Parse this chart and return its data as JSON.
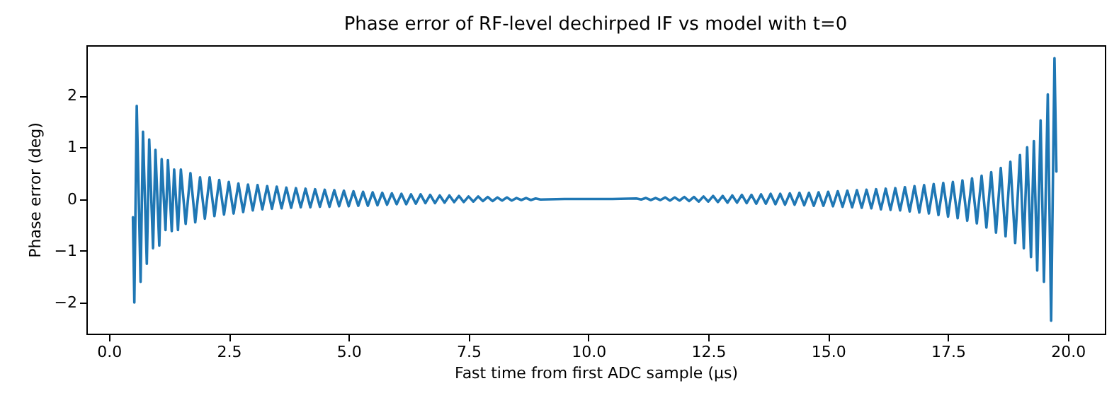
{
  "chart_data": {
    "type": "line",
    "title": "Phase error of RF-level dechirped IF vs model with t=0",
    "xlabel": "Fast time from first ADC sample (µs)",
    "ylabel": "Phase error (deg)",
    "x": [
      0.5,
      0.53,
      0.58,
      0.66,
      0.71,
      0.79,
      0.84,
      0.92,
      0.97,
      1.05,
      1.1,
      1.18,
      1.23,
      1.31,
      1.36,
      1.44,
      1.5,
      1.6,
      1.7,
      1.8,
      1.9,
      2.0,
      2.1,
      2.2,
      2.3,
      2.4,
      2.5,
      2.6,
      2.7,
      2.8,
      2.9,
      3.0,
      3.1,
      3.2,
      3.3,
      3.4,
      3.5,
      3.6,
      3.7,
      3.8,
      3.9,
      4.0,
      4.1,
      4.2,
      4.3,
      4.4,
      4.5,
      4.6,
      4.7,
      4.8,
      4.9,
      5.0,
      5.1,
      5.2,
      5.3,
      5.4,
      5.5,
      5.6,
      5.7,
      5.8,
      5.9,
      6.0,
      6.1,
      6.2,
      6.3,
      6.4,
      6.5,
      6.6,
      6.7,
      6.8,
      6.9,
      7.0,
      7.1,
      7.2,
      7.3,
      7.4,
      7.5,
      7.6,
      7.7,
      7.8,
      7.9,
      8.0,
      8.1,
      8.2,
      8.3,
      8.4,
      8.5,
      8.6,
      8.7,
      8.8,
      8.9,
      9.0,
      9.5,
      10.5,
      11.0,
      11.1,
      11.2,
      11.3,
      11.4,
      11.5,
      11.6,
      11.7,
      11.8,
      11.9,
      12.0,
      12.1,
      12.2,
      12.3,
      12.4,
      12.5,
      12.6,
      12.7,
      12.8,
      12.9,
      13.0,
      13.1,
      13.2,
      13.3,
      13.4,
      13.5,
      13.6,
      13.7,
      13.8,
      13.9,
      14.0,
      14.1,
      14.2,
      14.3,
      14.4,
      14.5,
      14.6,
      14.7,
      14.8,
      14.9,
      15.0,
      15.1,
      15.2,
      15.3,
      15.4,
      15.5,
      15.6,
      15.7,
      15.8,
      15.9,
      16.0,
      16.1,
      16.2,
      16.3,
      16.4,
      16.5,
      16.6,
      16.7,
      16.8,
      16.9,
      17.0,
      17.1,
      17.2,
      17.3,
      17.4,
      17.5,
      17.6,
      17.7,
      17.8,
      17.9,
      18.0,
      18.1,
      18.2,
      18.3,
      18.4,
      18.5,
      18.6,
      18.7,
      18.8,
      18.9,
      19.0,
      19.08,
      19.15,
      19.23,
      19.29,
      19.36,
      19.43,
      19.5,
      19.58,
      19.65,
      19.72,
      19.76
    ],
    "values": [
      -0.35,
      -2.0,
      1.8,
      -1.6,
      1.3,
      -1.25,
      1.15,
      -0.95,
      0.95,
      -0.9,
      0.77,
      -0.6,
      0.75,
      -0.62,
      0.57,
      -0.6,
      0.57,
      -0.48,
      0.5,
      -0.45,
      0.42,
      -0.38,
      0.42,
      -0.33,
      0.37,
      -0.3,
      0.33,
      -0.28,
      0.3,
      -0.25,
      0.28,
      -0.22,
      0.27,
      -0.2,
      0.25,
      -0.19,
      0.24,
      -0.18,
      0.22,
      -0.17,
      0.21,
      -0.16,
      0.2,
      -0.16,
      0.19,
      -0.15,
      0.18,
      -0.15,
      0.17,
      -0.14,
      0.16,
      -0.14,
      0.15,
      -0.13,
      0.14,
      -0.13,
      0.13,
      -0.12,
      0.12,
      -0.11,
      0.11,
      -0.1,
      0.1,
      -0.1,
      0.09,
      -0.09,
      0.09,
      -0.08,
      0.08,
      -0.08,
      0.07,
      -0.07,
      0.07,
      -0.06,
      0.06,
      -0.06,
      0.05,
      -0.05,
      0.05,
      -0.04,
      0.04,
      -0.04,
      0.03,
      -0.03,
      0.03,
      -0.03,
      0.02,
      -0.02,
      0.02,
      -0.02,
      0.01,
      -0.01,
      0,
      0,
      0.01,
      -0.01,
      0.02,
      -0.02,
      0.02,
      -0.02,
      0.03,
      -0.03,
      0.03,
      -0.03,
      0.04,
      -0.04,
      0.04,
      -0.05,
      0.05,
      -0.05,
      0.06,
      -0.06,
      0.06,
      -0.07,
      0.07,
      -0.07,
      0.08,
      -0.08,
      0.08,
      -0.09,
      0.09,
      -0.09,
      0.1,
      -0.1,
      0.1,
      -0.11,
      0.11,
      -0.11,
      0.12,
      -0.12,
      0.12,
      -0.13,
      0.13,
      -0.13,
      0.14,
      -0.14,
      0.15,
      -0.15,
      0.16,
      -0.16,
      0.17,
      -0.17,
      0.18,
      -0.18,
      0.19,
      -0.2,
      0.2,
      -0.21,
      0.21,
      -0.22,
      0.23,
      -0.24,
      0.25,
      -0.26,
      0.27,
      -0.28,
      0.29,
      -0.31,
      0.31,
      -0.34,
      0.33,
      -0.37,
      0.36,
      -0.42,
      0.4,
      -0.47,
      0.45,
      -0.55,
      0.52,
      -0.65,
      0.6,
      -0.72,
      0.72,
      -0.85,
      0.85,
      -0.95,
      1.0,
      -1.12,
      1.12,
      -1.38,
      1.52,
      -1.6,
      2.02,
      -2.35,
      2.72,
      0.53
    ],
    "color": "#1f77b4",
    "xlim": [
      -0.47,
      20.77
    ],
    "ylim": [
      -2.6,
      2.97
    ],
    "xticks": [
      {
        "value": 0,
        "label": "0.0"
      },
      {
        "value": 2.5,
        "label": "2.5"
      },
      {
        "value": 5,
        "label": "5.0"
      },
      {
        "value": 7.5,
        "label": "7.5"
      },
      {
        "value": 10,
        "label": "10.0"
      },
      {
        "value": 12.5,
        "label": "12.5"
      },
      {
        "value": 15,
        "label": "15.0"
      },
      {
        "value": 17.5,
        "label": "17.5"
      },
      {
        "value": 20,
        "label": "20.0"
      }
    ],
    "yticks": [
      {
        "value": -2,
        "label": "−2"
      },
      {
        "value": -1,
        "label": "−1"
      },
      0,
      1,
      2
    ],
    "grid": false
  }
}
